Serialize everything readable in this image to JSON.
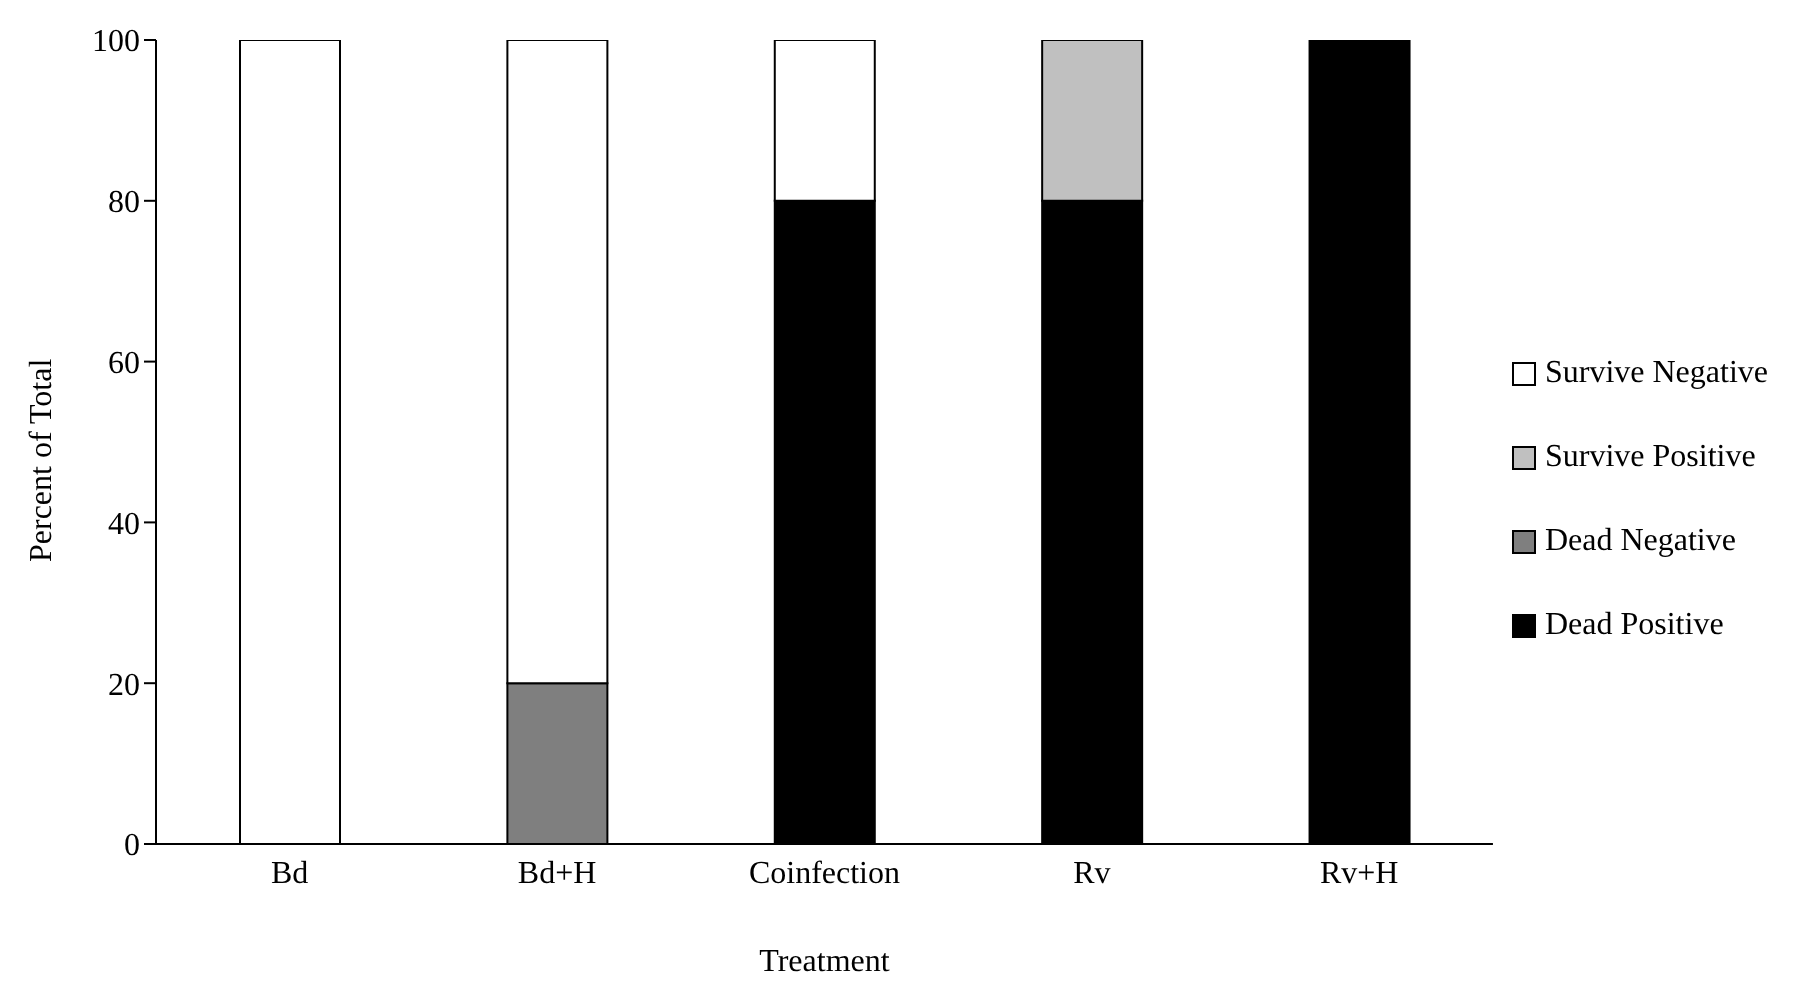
{
  "chart_data": {
    "type": "bar",
    "stacked": true,
    "xlabel": "Treatment",
    "ylabel": "Percent of Total",
    "categories": [
      "Bd",
      "Bd+H",
      "Coinfection",
      "Rv",
      "Rv+H"
    ],
    "series": [
      {
        "name": "Dead Positive",
        "color": "#000000",
        "values": [
          0,
          0,
          80,
          80,
          100
        ]
      },
      {
        "name": "Dead Negative",
        "color": "#7f7f7f",
        "values": [
          0,
          20,
          0,
          0,
          0
        ]
      },
      {
        "name": "Survive Positive",
        "color": "#c0c0c0",
        "values": [
          0,
          0,
          0,
          20,
          0
        ]
      },
      {
        "name": "Survive Negative",
        "color": "#ffffff",
        "values": [
          100,
          80,
          20,
          0,
          0
        ]
      }
    ],
    "ylim": [
      0,
      100
    ],
    "yticks": [
      0,
      20,
      40,
      60,
      80,
      100
    ],
    "grid": false,
    "legend": "right"
  }
}
